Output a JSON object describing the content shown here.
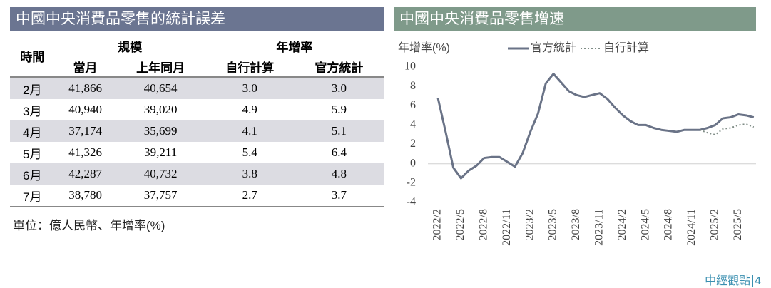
{
  "table": {
    "title": "中國中央消費品零售的統計誤差",
    "header_top": [
      "時間",
      "規模",
      "年增率"
    ],
    "header_sub": [
      "當月",
      "上年同月",
      "自行計算",
      "官方統計"
    ],
    "rows": [
      [
        "2月",
        "41,866",
        "40,654",
        "3.0",
        "3.0"
      ],
      [
        "3月",
        "40,940",
        "39,020",
        "4.9",
        "5.9"
      ],
      [
        "4月",
        "37,174",
        "35,699",
        "4.1",
        "5.1"
      ],
      [
        "5月",
        "41,326",
        "39,211",
        "5.4",
        "6.4"
      ],
      [
        "6月",
        "42,287",
        "40,732",
        "3.8",
        "4.8"
      ],
      [
        "7月",
        "38,780",
        "37,757",
        "2.7",
        "3.7"
      ]
    ],
    "note": "單位：億人民幣、年增率(%)"
  },
  "chart_data": {
    "type": "line",
    "title": "中國中央消費品零售增速",
    "y_label": "年增率(%)",
    "categories": [
      "2022/2",
      null,
      null,
      "2022/5",
      null,
      null,
      "2022/8",
      null,
      null,
      "2022/11",
      null,
      null,
      "2023/2",
      null,
      null,
      "2023/5",
      null,
      null,
      "2023/8",
      null,
      null,
      "2023/11",
      null,
      null,
      "2024/2",
      null,
      null,
      "2024/5",
      null,
      null,
      "2024/8",
      null,
      null,
      "2024/11",
      null,
      null,
      "2025/2",
      null,
      null,
      "2025/5",
      null,
      null
    ],
    "series": [
      {
        "name": "官方統計",
        "color": "#6a7387",
        "style": "solid",
        "values": [
          6.8,
          3.3,
          -0.4,
          -1.5,
          -0.7,
          -0.2,
          0.6,
          0.7,
          0.7,
          0.2,
          -0.3,
          1.1,
          3.3,
          5.2,
          8.3,
          9.3,
          8.4,
          7.5,
          7.1,
          6.9,
          7.1,
          7.3,
          6.7,
          5.8,
          5.0,
          4.4,
          4.0,
          4.0,
          3.7,
          3.5,
          3.4,
          3.3,
          3.5,
          3.5,
          3.5,
          3.7,
          4.0,
          4.7,
          4.8,
          5.1,
          5.0,
          4.8
        ]
      },
      {
        "name": "自行計算",
        "color": "#7f8c86",
        "style": "dotted",
        "values": [
          null,
          null,
          null,
          null,
          null,
          null,
          null,
          null,
          null,
          null,
          null,
          null,
          null,
          null,
          null,
          null,
          null,
          null,
          null,
          null,
          null,
          null,
          null,
          null,
          null,
          null,
          null,
          null,
          null,
          null,
          null,
          null,
          null,
          null,
          3.5,
          3.2,
          3.0,
          3.6,
          3.7,
          4.0,
          4.1,
          3.8
        ]
      }
    ],
    "ylim": [
      -4,
      10
    ],
    "yticks": [
      -4,
      -2,
      0,
      2,
      4,
      6,
      8,
      10
    ],
    "grid": false
  },
  "footer": {
    "brand": "中經觀點",
    "page": "4"
  }
}
